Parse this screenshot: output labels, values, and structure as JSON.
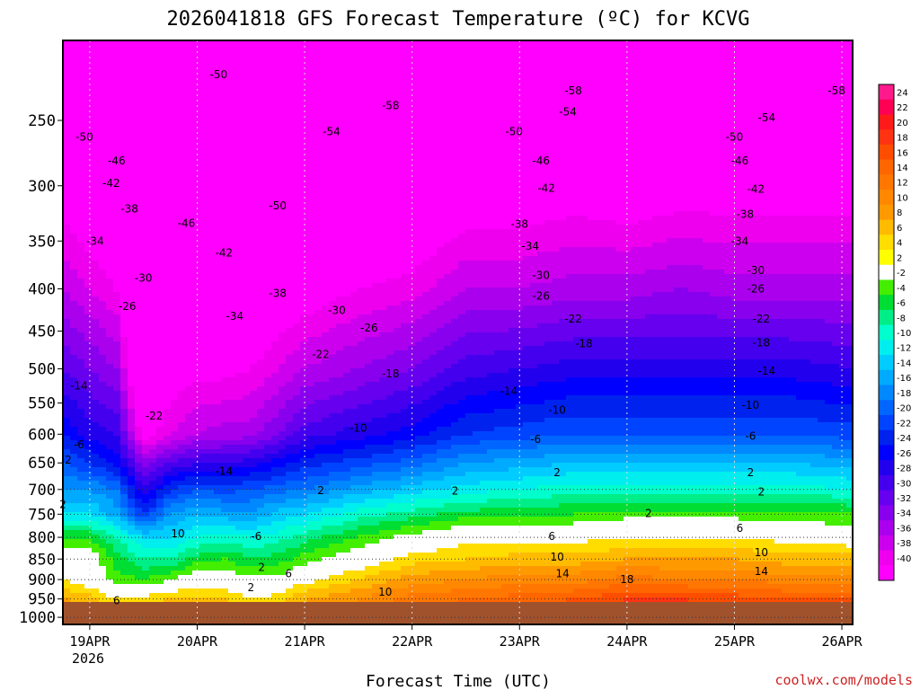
{
  "chart_data": {
    "type": "heatmap",
    "title": "2026041818 GFS Forecast Temperature (ºC) for KCVG",
    "xlabel": "Forecast Time (UTC)",
    "ylabel": "Pressure (hPa)",
    "credit": "coolwx.com/models",
    "y_axis": {
      "range": [
        1020,
        200
      ],
      "ticks": [
        250,
        300,
        350,
        400,
        450,
        500,
        550,
        600,
        650,
        700,
        750,
        800,
        850,
        900,
        950,
        1000
      ],
      "tick_labels": [
        "250",
        "300",
        "350",
        "400",
        "450",
        "500",
        "550",
        "600",
        "650",
        "700",
        "750",
        "800",
        "850",
        "900",
        "950",
        "1000"
      ],
      "gridlines": [
        700,
        750,
        800,
        850,
        900,
        950,
        1000
      ]
    },
    "x_axis": {
      "range_days": [
        -0.25,
        7.1
      ],
      "ticks": [
        0,
        1,
        2,
        3,
        4,
        5,
        6,
        7
      ],
      "tick_labels": [
        "19APR",
        "20APR",
        "21APR",
        "22APR",
        "23APR",
        "24APR",
        "25APR",
        "26APR"
      ],
      "year_label": "2026"
    },
    "colorbar": {
      "labels": [
        "24",
        "22",
        "20",
        "18",
        "16",
        "14",
        "12",
        "10",
        "8",
        "6",
        "4",
        "2",
        "-2",
        "-4",
        "-6",
        "-8",
        "-10",
        "-12",
        "-14",
        "-16",
        "-18",
        "-20",
        "-22",
        "-24",
        "-26",
        "-28",
        "-30",
        "-32",
        "-34",
        "-36",
        "-38",
        "-40"
      ],
      "colors": [
        "#ff1a8c",
        "#ff0055",
        "#ff1a1a",
        "#ff3311",
        "#ff4d00",
        "#ff6600",
        "#ff7700",
        "#ff8800",
        "#ff9900",
        "#ffbb00",
        "#ffdd00",
        "#ffff00",
        "#ffffff",
        "#44ee00",
        "#00dd33",
        "#00ee88",
        "#00ffcc",
        "#00eeee",
        "#00ccff",
        "#00aaff",
        "#0088ff",
        "#0066ff",
        "#0044ff",
        "#0022ee",
        "#0000ff",
        "#2200ee",
        "#4400ee",
        "#6600ee",
        "#8800ee",
        "#aa00ee",
        "#cc00ee",
        "#ee00ee",
        "#ff00ff"
      ]
    },
    "profiles": [
      {
        "t": -0.25,
        "temps": [
          12.0,
          6.0,
          2.0,
          1.0,
          -4.0,
          -12.0,
          -16.0,
          -20.0,
          -24.0,
          -30.0,
          -36.0,
          -42.0,
          -48.0
        ]
      },
      {
        "t": 0.0,
        "temps": [
          9.0,
          5.0,
          0.0,
          0.0,
          -4.0,
          -12.0,
          -16.0,
          -22.0,
          -27.0,
          -32.0,
          -38.0,
          -44.0,
          -50.0
        ]
      },
      {
        "t": 0.25,
        "temps": [
          5.0,
          2.0,
          -3.0,
          -5.0,
          -8.0,
          -15.0,
          -18.0,
          -25.0,
          -28.0,
          -34.0,
          -40.0,
          -46.0,
          -52.0
        ]
      },
      {
        "t": 0.5,
        "temps": [
          7.0,
          3.0,
          -4.0,
          -8.0,
          -12.0,
          -22.0,
          -28.0,
          -33.0,
          -42.0,
          -48.0,
          -52.0,
          -54.0,
          -56.0
        ]
      },
      {
        "t": 0.75,
        "temps": [
          8.0,
          4.0,
          -2.0,
          -8.0,
          -12.0,
          -16.0,
          -22.0,
          -30.0,
          -38.0,
          -42.0,
          -48.0,
          -52.0,
          -56.0
        ]
      },
      {
        "t": 1.0,
        "temps": [
          10.0,
          5.0,
          0.0,
          -5.0,
          -10.0,
          -14.0,
          -20.0,
          -28.0,
          -36.0,
          -41.0,
          -46.0,
          -50.0,
          -54.0
        ]
      },
      {
        "t": 1.25,
        "temps": [
          9.0,
          4.0,
          0.0,
          -4.0,
          -9.0,
          -15.0,
          -21.0,
          -28.0,
          -35.0,
          -41.0,
          -46.0,
          -50.0,
          -54.0
        ]
      },
      {
        "t": 1.5,
        "temps": [
          4.0,
          2.0,
          -1.0,
          -6.0,
          -10.0,
          -16.0,
          -20.0,
          -27.0,
          -35.0,
          -40.0,
          -45.0,
          -49.0,
          -53.0
        ]
      },
      {
        "t": 1.75,
        "temps": [
          6.0,
          3.0,
          -1.0,
          -5.0,
          -9.0,
          -13.0,
          -19.0,
          -25.0,
          -32.0,
          -38.0,
          -43.0,
          -48.0,
          -53.0
        ]
      },
      {
        "t": 2.0,
        "temps": [
          8.0,
          6.0,
          1.0,
          -3.0,
          -7.0,
          -12.0,
          -18.0,
          -23.0,
          -29.0,
          -36.0,
          -42.0,
          -47.0,
          -53.0
        ]
      },
      {
        "t": 2.5,
        "temps": [
          12.0,
          8.0,
          4.0,
          0.0,
          -4.0,
          -9.0,
          -15.0,
          -21.0,
          -27.0,
          -34.0,
          -40.0,
          -46.0,
          -52.0
        ]
      },
      {
        "t": 3.0,
        "temps": [
          16.0,
          11.0,
          7.0,
          3.0,
          -1.0,
          -7.0,
          -13.0,
          -19.0,
          -25.0,
          -32.0,
          -39.0,
          -45.0,
          -51.0
        ]
      },
      {
        "t": 3.5,
        "temps": [
          15.0,
          12.0,
          8.0,
          4.0,
          1.0,
          -5.0,
          -11.0,
          -16.0,
          -22.0,
          -29.0,
          -36.0,
          -43.0,
          -50.0
        ]
      },
      {
        "t": 4.0,
        "temps": [
          16.0,
          13.0,
          9.0,
          5.0,
          1.0,
          -5.0,
          -10.0,
          -15.0,
          -21.0,
          -28.0,
          -36.0,
          -43.0,
          -50.0
        ]
      },
      {
        "t": 4.5,
        "temps": [
          18.0,
          14.0,
          9.0,
          5.0,
          1.0,
          -4.0,
          -9.0,
          -14.0,
          -20.0,
          -27.0,
          -35.0,
          -42.0,
          -50.0
        ]
      },
      {
        "t": 5.0,
        "temps": [
          20.0,
          16.0,
          11.0,
          6.0,
          2.0,
          -3.0,
          -9.0,
          -14.0,
          -20.0,
          -27.0,
          -35.0,
          -43.0,
          -50.0
        ]
      },
      {
        "t": 5.5,
        "temps": [
          19.0,
          16.0,
          10.0,
          6.0,
          2.0,
          -3.0,
          -9.0,
          -14.0,
          -20.0,
          -27.0,
          -34.0,
          -42.0,
          -50.0
        ]
      },
      {
        "t": 6.0,
        "temps": [
          19.0,
          15.0,
          10.0,
          6.0,
          2.0,
          -3.0,
          -9.0,
          -14.0,
          -20.0,
          -27.0,
          -35.0,
          -42.0,
          -50.0
        ]
      },
      {
        "t": 6.5,
        "temps": [
          18.0,
          14.0,
          9.0,
          5.0,
          1.0,
          -3.0,
          -9.0,
          -14.0,
          -20.0,
          -27.0,
          -35.0,
          -42.0,
          -50.0
        ]
      },
      {
        "t": 7.1,
        "temps": [
          19.0,
          14.0,
          9.0,
          5.0,
          0.0,
          -4.0,
          -10.0,
          -15.0,
          -21.0,
          -28.0,
          -35.0,
          -42.0,
          -50.0
        ]
      }
    ],
    "profile_levels": [
      1000,
      950,
      900,
      850,
      800,
      750,
      700,
      650,
      600,
      500,
      400,
      300,
      200
    ],
    "contour_labels": [
      {
        "t": 1.2,
        "p": 220,
        "text": "-50"
      },
      {
        "t": 6.95,
        "p": 230,
        "text": "-58"
      },
      {
        "t": 4.5,
        "p": 230,
        "text": "-58"
      },
      {
        "t": 2.8,
        "p": 240,
        "text": "-58"
      },
      {
        "t": 4.45,
        "p": 244,
        "text": "-54"
      },
      {
        "t": 6.3,
        "p": 248,
        "text": "-54"
      },
      {
        "t": -0.05,
        "p": 262,
        "text": "-50"
      },
      {
        "t": 2.25,
        "p": 258,
        "text": "-54"
      },
      {
        "t": 3.95,
        "p": 258,
        "text": "-50"
      },
      {
        "t": 6.0,
        "p": 262,
        "text": "-50"
      },
      {
        "t": 0.25,
        "p": 280,
        "text": "-46"
      },
      {
        "t": 4.2,
        "p": 280,
        "text": "-46"
      },
      {
        "t": 6.05,
        "p": 280,
        "text": "-46"
      },
      {
        "t": 0.2,
        "p": 298,
        "text": "-42"
      },
      {
        "t": 4.25,
        "p": 302,
        "text": "-42"
      },
      {
        "t": 6.2,
        "p": 303,
        "text": "-42"
      },
      {
        "t": 0.37,
        "p": 320,
        "text": "-38"
      },
      {
        "t": 1.75,
        "p": 317,
        "text": "-50"
      },
      {
        "t": 0.9,
        "p": 333,
        "text": "-46"
      },
      {
        "t": 4.0,
        "p": 334,
        "text": "-38"
      },
      {
        "t": 6.1,
        "p": 325,
        "text": "-38"
      },
      {
        "t": 0.05,
        "p": 350,
        "text": "-34"
      },
      {
        "t": 4.1,
        "p": 355,
        "text": "-34"
      },
      {
        "t": 6.05,
        "p": 350,
        "text": "-34"
      },
      {
        "t": 1.25,
        "p": 362,
        "text": "-42"
      },
      {
        "t": 4.2,
        "p": 385,
        "text": "-30"
      },
      {
        "t": 6.2,
        "p": 380,
        "text": "-30"
      },
      {
        "t": 0.5,
        "p": 388,
        "text": "-30"
      },
      {
        "t": 1.75,
        "p": 405,
        "text": "-38"
      },
      {
        "t": 4.2,
        "p": 408,
        "text": "-26"
      },
      {
        "t": 6.2,
        "p": 400,
        "text": "-26"
      },
      {
        "t": 2.3,
        "p": 425,
        "text": "-30"
      },
      {
        "t": 0.35,
        "p": 420,
        "text": "-26"
      },
      {
        "t": 1.35,
        "p": 432,
        "text": "-34"
      },
      {
        "t": 4.5,
        "p": 435,
        "text": "-22"
      },
      {
        "t": 6.25,
        "p": 435,
        "text": "-22"
      },
      {
        "t": 2.6,
        "p": 446,
        "text": "-26"
      },
      {
        "t": 4.6,
        "p": 466,
        "text": "-18"
      },
      {
        "t": 6.25,
        "p": 465,
        "text": "-18"
      },
      {
        "t": 2.15,
        "p": 480,
        "text": "-22"
      },
      {
        "t": 2.8,
        "p": 507,
        "text": "-18"
      },
      {
        "t": 6.3,
        "p": 503,
        "text": "-14"
      },
      {
        "t": -0.1,
        "p": 524,
        "text": "-14"
      },
      {
        "t": 3.9,
        "p": 532,
        "text": "-14"
      },
      {
        "t": 0.6,
        "p": 570,
        "text": "-22"
      },
      {
        "t": 6.15,
        "p": 553,
        "text": "-10"
      },
      {
        "t": 4.35,
        "p": 561,
        "text": "-10"
      },
      {
        "t": 2.5,
        "p": 590,
        "text": "-10"
      },
      {
        "t": -0.1,
        "p": 618,
        "text": "-6"
      },
      {
        "t": 4.15,
        "p": 609,
        "text": "-6"
      },
      {
        "t": 6.15,
        "p": 603,
        "text": "-6"
      },
      {
        "t": -0.2,
        "p": 645,
        "text": "2"
      },
      {
        "t": 1.25,
        "p": 665,
        "text": "-14"
      },
      {
        "t": 4.35,
        "p": 668,
        "text": "2"
      },
      {
        "t": 6.15,
        "p": 668,
        "text": "2"
      },
      {
        "t": 2.15,
        "p": 702,
        "text": "2"
      },
      {
        "t": 3.4,
        "p": 703,
        "text": "2"
      },
      {
        "t": 6.25,
        "p": 705,
        "text": "2"
      },
      {
        "t": -0.25,
        "p": 730,
        "text": "2"
      },
      {
        "t": 5.2,
        "p": 748,
        "text": "2"
      },
      {
        "t": 0.82,
        "p": 792,
        "text": "10"
      },
      {
        "t": 1.55,
        "p": 798,
        "text": "-6"
      },
      {
        "t": 4.3,
        "p": 798,
        "text": "6"
      },
      {
        "t": 6.05,
        "p": 780,
        "text": "6"
      },
      {
        "t": 1.6,
        "p": 870,
        "text": "2"
      },
      {
        "t": 4.35,
        "p": 845,
        "text": "10"
      },
      {
        "t": 6.25,
        "p": 835,
        "text": "10"
      },
      {
        "t": 1.85,
        "p": 885,
        "text": "6"
      },
      {
        "t": 4.4,
        "p": 885,
        "text": "14"
      },
      {
        "t": 6.25,
        "p": 880,
        "text": "14"
      },
      {
        "t": 1.5,
        "p": 920,
        "text": "2"
      },
      {
        "t": 5.0,
        "p": 900,
        "text": "18"
      },
      {
        "t": 2.75,
        "p": 932,
        "text": "10"
      },
      {
        "t": 0.25,
        "p": 954,
        "text": "6"
      }
    ]
  }
}
